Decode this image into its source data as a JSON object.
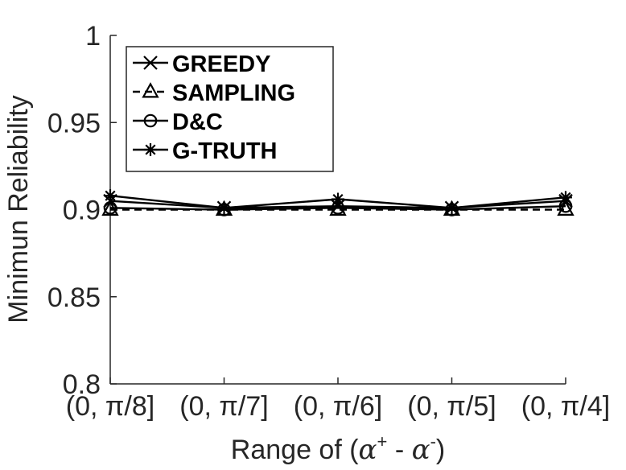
{
  "chart_data": {
    "type": "line",
    "xlabel": "Range of (α⁺ - α⁻)",
    "xlabel_parts": {
      "prefix": "Range of (",
      "alpha": "α",
      "plus": "+",
      "minus_sep": " - ",
      "minus": "-",
      "suffix": ")"
    },
    "ylabel": "Minimun Reliability",
    "categories": [
      "(0, π/8]",
      "(0, π/7]",
      "(0, π/6]",
      "(0, π/5]",
      "(0, π/4]"
    ],
    "ylim": [
      0.8,
      1
    ],
    "yticks": [
      0.8,
      0.85,
      0.9,
      0.95,
      1
    ],
    "ytick_labels": [
      "0.8",
      "0.85",
      "0.9",
      "0.95",
      "1"
    ],
    "grid": false,
    "legend_position": "top-left",
    "series": [
      {
        "name": "GREEDY",
        "marker": "x",
        "dash": "solid",
        "color": "#000000",
        "values": [
          0.905,
          0.901,
          0.902,
          0.901,
          0.905
        ]
      },
      {
        "name": "SAMPLING",
        "marker": "triangle",
        "dash": "dashed",
        "color": "#000000",
        "values": [
          0.9,
          0.9,
          0.9,
          0.9,
          0.9
        ]
      },
      {
        "name": "D&C",
        "marker": "circle",
        "dash": "solid",
        "color": "#000000",
        "values": [
          0.901,
          0.9,
          0.901,
          0.9,
          0.902
        ]
      },
      {
        "name": "G-TRUTH",
        "marker": "asterisk",
        "dash": "solid",
        "color": "#000000",
        "values": [
          0.908,
          0.901,
          0.906,
          0.901,
          0.907
        ]
      }
    ]
  }
}
